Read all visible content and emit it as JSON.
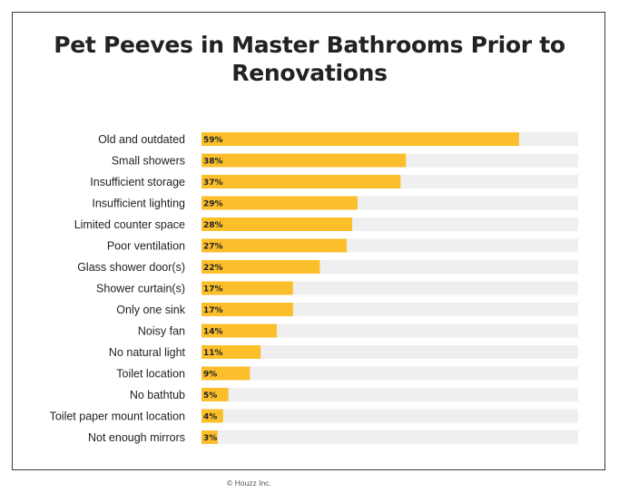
{
  "title": "Pet Peeves in Master Bathrooms Prior to Renovations",
  "credit": "© Houzz Inc.",
  "colors": {
    "bar": "#fbbf2c",
    "track": "#efefef",
    "text": "#222222",
    "frame": "#3a3a3a"
  },
  "chart_data": {
    "type": "bar",
    "orientation": "horizontal",
    "title": "Pet Peeves in Master Bathrooms Prior to Renovations",
    "xlabel": "",
    "ylabel": "",
    "xlim": [
      0,
      70
    ],
    "grid": false,
    "legend": "none",
    "value_suffix": "%",
    "categories": [
      "Old and outdated",
      "Small showers",
      "Insufficient storage",
      "Insufficient lighting",
      "Limited counter space",
      "Poor ventilation",
      "Glass shower door(s)",
      "Shower curtain(s)",
      "Only one sink",
      "Noisy fan",
      "No natural light",
      "Toilet location",
      "No bathtub",
      "Toilet paper mount location",
      "Not enough mirrors"
    ],
    "values": [
      59,
      38,
      37,
      29,
      28,
      27,
      22,
      17,
      17,
      14,
      11,
      9,
      5,
      4,
      3
    ],
    "labels": [
      "59%",
      "38%",
      "37%",
      "29%",
      "28%",
      "27%",
      "22%",
      "17%",
      "17%",
      "14%",
      "11%",
      "9%",
      "5%",
      "4%",
      "3%"
    ]
  }
}
